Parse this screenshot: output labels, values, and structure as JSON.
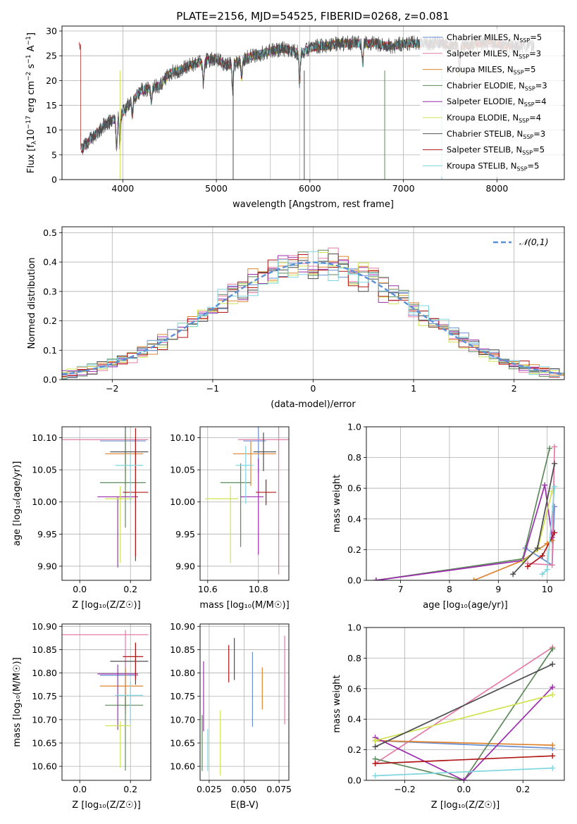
{
  "figure_title": "PLATE=2156, MJD=54525, FIBERID=0268, z=0.081",
  "legend_entries": [
    {
      "imf": "Chabrier",
      "lib": "MILES",
      "nssp": "5",
      "color": "#6a8fd3"
    },
    {
      "imf": "Salpeter",
      "lib": "MILES",
      "nssp": "3",
      "color": "#e57aa6"
    },
    {
      "imf": "Kroupa",
      "lib": "MILES",
      "nssp": "5",
      "color": "#e0832f"
    },
    {
      "imf": "Chabrier",
      "lib": "ELODIE",
      "nssp": "3",
      "color": "#5d8a5a"
    },
    {
      "imf": "Salpeter",
      "lib": "ELODIE",
      "nssp": "4",
      "color": "#9c2fad"
    },
    {
      "imf": "Kroupa",
      "lib": "ELODIE",
      "nssp": "4",
      "color": "#cfe34f"
    },
    {
      "imf": "Chabrier",
      "lib": "STELIB",
      "nssp": "3",
      "color": "#4d4d4d"
    },
    {
      "imf": "Salpeter",
      "lib": "STELIB",
      "nssp": "5",
      "color": "#b01818"
    },
    {
      "imf": "Kroupa",
      "lib": "STELIB",
      "nssp": "5",
      "color": "#7fd6df"
    }
  ],
  "chart_data": [
    {
      "id": "spectrum",
      "type": "line",
      "title": "PLATE=2156, MJD=54525, FIBERID=0268, z=0.081",
      "xlabel": "wavelength [Angstrom, rest frame]",
      "ylabel_parts": [
        "Flux [f",
        "λ",
        "10",
        "−17",
        " erg cm",
        "−2",
        " s",
        "−1",
        " A",
        "−1",
        "]"
      ],
      "xlim": [
        3350,
        8720
      ],
      "ylim": [
        0,
        31
      ],
      "xticks": [
        4000,
        5000,
        6000,
        7000,
        8000
      ],
      "yticks": [
        0,
        5,
        10,
        15,
        20,
        25,
        30
      ],
      "spectrum_shape": {
        "x": [
          3550,
          3700,
          3800,
          3900,
          4000,
          4100,
          4200,
          4300,
          4400,
          4500,
          4600,
          4700,
          4800,
          4900,
          5000,
          5100,
          5200,
          5300,
          5400,
          5500,
          5600,
          5700,
          5800,
          5900,
          6000,
          6100,
          6200,
          6300,
          6400,
          6500,
          6600,
          6700,
          6800,
          6900,
          7000,
          7100,
          7200,
          7300,
          7400,
          7500,
          7600,
          7700,
          7800,
          7900,
          8000,
          8100,
          8200,
          8300,
          8400
        ],
        "y": [
          6,
          9,
          11,
          12,
          13.5,
          16,
          18,
          18.5,
          19,
          21.5,
          22,
          23,
          23.5,
          24,
          24.5,
          23,
          23.5,
          24.5,
          25,
          25.5,
          26,
          26.5,
          26,
          25.5,
          26.5,
          27,
          27,
          27.5,
          27.5,
          27.5,
          27.5,
          27.5,
          27,
          27,
          27.5,
          27.5,
          27.5,
          27.5,
          27.5,
          27,
          27,
          27,
          27.5,
          27.5,
          27.5,
          27,
          27,
          27,
          27
        ]
      },
      "sky_lines": [
        5577,
        5890,
        6300
      ],
      "legend_placement": "upper-right"
    },
    {
      "id": "residuals",
      "type": "step",
      "xlabel": "(data-model)/error",
      "ylabel": "Normed distribution",
      "xlim": [
        -2.5,
        2.5
      ],
      "ylim": [
        0,
        0.52
      ],
      "xticks": [
        -2,
        -1,
        0,
        1,
        2
      ],
      "yticks": [
        0,
        0.1,
        0.2,
        0.3,
        0.4,
        0.5
      ],
      "bin_width": 0.1,
      "reference": {
        "label": "𝒩(0,1)",
        "color": "#5b8fd6",
        "style": "dashed"
      },
      "legend_placement": "upper-right"
    },
    {
      "id": "age_vs_Z",
      "type": "errorbar",
      "xlabel": "Z [log₁₀(Z/Z☉)]",
      "ylabel": "age  [log₁₀(age/yr)]",
      "xlim": [
        -0.07,
        0.28
      ],
      "ylim": [
        9.878,
        10.117
      ],
      "xticks": [
        0.0,
        0.2
      ],
      "yticks": [
        9.9,
        9.95,
        10.0,
        10.05,
        10.1
      ],
      "points": [
        {
          "x": 0.18,
          "y": 10.095,
          "xerr": [
            0.1,
            0.08
          ],
          "yerr": [
            0.05,
            0.03
          ],
          "color": "#6a8fd3"
        },
        {
          "x": 0.18,
          "y": 10.097,
          "xerr": [
            0.26,
            0.09
          ],
          "yerr": [
            0.0,
            0.02
          ],
          "color": "#e57aa6"
        },
        {
          "x": 0.18,
          "y": 10.075,
          "xerr": [
            0.08,
            0.07
          ],
          "yerr": [
            0.05,
            0.03
          ],
          "color": "#e0832f"
        },
        {
          "x": 0.18,
          "y": 10.03,
          "xerr": [
            0.1,
            0.08
          ],
          "yerr": [
            0.07,
            0.09
          ],
          "color": "#5d8a5a"
        },
        {
          "x": 0.15,
          "y": 10.008,
          "xerr": [
            0.08,
            0.08
          ],
          "yerr": [
            0.11,
            0.0
          ],
          "color": "#9c2fad"
        },
        {
          "x": 0.16,
          "y": 10.005,
          "xerr": [
            0.06,
            0.05
          ],
          "yerr": [
            0.1,
            0.02
          ],
          "color": "#cfe34f"
        },
        {
          "x": 0.22,
          "y": 10.078,
          "xerr": [
            0.1,
            0.05
          ],
          "yerr": [
            0.17,
            0.02
          ],
          "color": "#4d4d4d"
        },
        {
          "x": 0.22,
          "y": 10.015,
          "xerr": [
            0.05,
            0.05
          ],
          "yerr": [
            0.1,
            0.1
          ],
          "color": "#b01818"
        },
        {
          "x": 0.2,
          "y": 10.057,
          "xerr": [
            0.06,
            0.05
          ],
          "yerr": [
            0.06,
            0.02
          ],
          "color": "#7fd6df"
        }
      ]
    },
    {
      "id": "age_vs_mass",
      "type": "errorbar",
      "xlabel": "mass [log₁₀(M/M☉)]",
      "ylabel": "",
      "xlim": [
        10.57,
        10.92
      ],
      "ylim": [
        9.878,
        10.117
      ],
      "xticks": [
        10.6,
        10.8
      ],
      "yticks": [
        9.9,
        9.95,
        10.0,
        10.05,
        10.1
      ],
      "points": [
        {
          "x": 10.8,
          "y": 10.095,
          "xerr": [
            0.06,
            0.03
          ],
          "yerr": [
            0.05,
            0.03
          ],
          "color": "#6a8fd3"
        },
        {
          "x": 10.88,
          "y": 10.097,
          "xerr": [
            0.16,
            0.08
          ],
          "yerr": [
            0.21,
            0.02
          ],
          "color": "#e57aa6"
        },
        {
          "x": 10.77,
          "y": 10.075,
          "xerr": [
            0.07,
            0.1
          ],
          "yerr": [
            0.05,
            0.02
          ],
          "color": "#e0832f"
        },
        {
          "x": 10.73,
          "y": 10.03,
          "xerr": [
            0.08,
            0.04
          ],
          "yerr": [
            0.1,
            0.03
          ],
          "color": "#5d8a5a"
        },
        {
          "x": 10.8,
          "y": 10.008,
          "xerr": [
            0.07,
            0.02
          ],
          "yerr": [
            0.09,
            0.06
          ],
          "color": "#9c2fad"
        },
        {
          "x": 10.69,
          "y": 10.005,
          "xerr": [
            0.1,
            0.03
          ],
          "yerr": [
            0.1,
            0.02
          ],
          "color": "#cfe34f"
        },
        {
          "x": 10.82,
          "y": 10.078,
          "xerr": [
            0.04,
            0.05
          ],
          "yerr": [
            0.03,
            0.03
          ],
          "color": "#4d4d4d"
        },
        {
          "x": 10.83,
          "y": 10.015,
          "xerr": [
            0.04,
            0.04
          ],
          "yerr": [
            0.02,
            0.02
          ],
          "color": "#b01818"
        },
        {
          "x": 10.75,
          "y": 10.057,
          "xerr": [
            0.04,
            0.03
          ],
          "yerr": [
            0.06,
            0.03
          ],
          "color": "#7fd6df"
        }
      ]
    },
    {
      "id": "weight_vs_age",
      "type": "line",
      "xlabel": "age  [log₁₀(age/yr)]",
      "ylabel": "mass weight",
      "xlim": [
        6.3,
        10.35
      ],
      "ylim": [
        0,
        1
      ],
      "xticks": [
        7,
        8,
        9,
        10
      ],
      "yticks": [
        0,
        0.2,
        0.4,
        0.6,
        0.8,
        1.0
      ],
      "series": [
        {
          "color": "#6a8fd3",
          "x": [
            9.55,
            10.1,
            10.15
          ],
          "y": [
            0.21,
            0.1,
            0.48
          ]
        },
        {
          "color": "#e57aa6",
          "x": [
            9.6,
            10.1,
            10.15
          ],
          "y": [
            0.11,
            0.1,
            0.87
          ]
        },
        {
          "color": "#e0832f",
          "x": [
            8.5,
            9.5,
            10.0,
            10.1
          ],
          "y": [
            0.0,
            0.13,
            0.24,
            0.26
          ]
        },
        {
          "color": "#5d8a5a",
          "x": [
            6.5,
            9.5,
            10.05
          ],
          "y": [
            0.0,
            0.14,
            0.86
          ]
        },
        {
          "color": "#9c2fad",
          "x": [
            6.5,
            9.5,
            9.95,
            10.1
          ],
          "y": [
            0.0,
            0.13,
            0.62,
            0.28
          ]
        },
        {
          "color": "#cfe34f",
          "x": [
            9.5,
            9.8,
            10.1
          ],
          "y": [
            0.12,
            0.2,
            0.58
          ]
        },
        {
          "color": "#4d4d4d",
          "x": [
            9.3,
            9.8,
            10.15
          ],
          "y": [
            0.04,
            0.21,
            0.76
          ]
        },
        {
          "color": "#b01818",
          "x": [
            9.6,
            9.9,
            10.15
          ],
          "y": [
            0.09,
            0.16,
            0.31
          ]
        },
        {
          "color": "#7fd6df",
          "x": [
            9.9,
            10.0,
            10.15
          ],
          "y": [
            0.04,
            0.07,
            0.61
          ]
        }
      ]
    },
    {
      "id": "mass_vs_Z",
      "type": "errorbar",
      "xlabel": "Z [log₁₀(Z/Z☉)]",
      "ylabel": "mass [log₁₀(M/M☉)]",
      "xlim": [
        -0.07,
        0.28
      ],
      "ylim": [
        10.57,
        10.905
      ],
      "xticks": [
        0.0,
        0.2
      ],
      "yticks": [
        10.6,
        10.65,
        10.7,
        10.75,
        10.8,
        10.85,
        10.9
      ],
      "points": [
        {
          "x": 0.18,
          "y": 10.795,
          "xerr": [
            0.1,
            0.05
          ],
          "yerr": [
            0.07,
            0.04
          ],
          "color": "#6a8fd3"
        },
        {
          "x": 0.18,
          "y": 10.882,
          "xerr": [
            0.26,
            0.09
          ],
          "yerr": [
            0.17,
            0.01
          ],
          "color": "#e57aa6"
        },
        {
          "x": 0.18,
          "y": 10.772,
          "xerr": [
            0.1,
            0.07
          ],
          "yerr": [
            0.05,
            0.04
          ],
          "color": "#e0832f"
        },
        {
          "x": 0.18,
          "y": 10.731,
          "xerr": [
            0.08,
            0.07
          ],
          "yerr": [
            0.14,
            0.02
          ],
          "color": "#5d8a5a"
        },
        {
          "x": 0.15,
          "y": 10.798,
          "xerr": [
            0.08,
            0.08
          ],
          "yerr": [
            0.12,
            0.02
          ],
          "color": "#9c2fad"
        },
        {
          "x": 0.16,
          "y": 10.687,
          "xerr": [
            0.06,
            0.04
          ],
          "yerr": [
            0.09,
            0.01
          ],
          "color": "#cfe34f"
        },
        {
          "x": 0.22,
          "y": 10.825,
          "xerr": [
            0.1,
            0.05
          ],
          "yerr": [
            0.05,
            0.04
          ],
          "color": "#4d4d4d"
        },
        {
          "x": 0.22,
          "y": 10.835,
          "xerr": [
            0.05,
            0.03
          ],
          "yerr": [
            0.05,
            0.03
          ],
          "color": "#b01818"
        },
        {
          "x": 0.2,
          "y": 10.752,
          "xerr": [
            0.06,
            0.05
          ],
          "yerr": [
            0.06,
            0.03
          ],
          "color": "#7fd6df"
        }
      ]
    },
    {
      "id": "mass_vs_EBV",
      "type": "errorbar",
      "xlabel": "E(B-V)",
      "ylabel": "",
      "xlim": [
        0.0185,
        0.082
      ],
      "ylim": [
        10.57,
        10.905
      ],
      "xticks": [
        0.025,
        0.05,
        0.075
      ],
      "yticks": [
        10.6,
        10.65,
        10.7,
        10.75,
        10.8,
        10.85,
        10.9
      ],
      "points": [
        {
          "x": 0.056,
          "y": 10.795,
          "xerr": [
            0,
            0
          ],
          "yerr": [
            0.11,
            0.05
          ],
          "color": "#6a8fd3"
        },
        {
          "x": 0.079,
          "y": 10.8,
          "xerr": [
            0,
            0
          ],
          "yerr": [
            0.11,
            0.08
          ],
          "color": "#e57aa6"
        },
        {
          "x": 0.063,
          "y": 10.772,
          "xerr": [
            0,
            0
          ],
          "yerr": [
            0.05,
            0.04
          ],
          "color": "#e0832f"
        },
        {
          "x": 0.02,
          "y": 10.65,
          "xerr": [
            0,
            0
          ],
          "yerr": [
            0.06,
            0.06
          ],
          "color": "#5d8a5a"
        },
        {
          "x": 0.021,
          "y": 10.755,
          "xerr": [
            0,
            0
          ],
          "yerr": [
            0.08,
            0.07
          ],
          "color": "#9c2fad"
        },
        {
          "x": 0.033,
          "y": 10.65,
          "xerr": [
            0,
            0
          ],
          "yerr": [
            0.07,
            0.07
          ],
          "color": "#cfe34f"
        },
        {
          "x": 0.043,
          "y": 10.825,
          "xerr": [
            0,
            0
          ],
          "yerr": [
            0.04,
            0.05
          ],
          "color": "#4d4d4d"
        },
        {
          "x": 0.039,
          "y": 10.82,
          "xerr": [
            0,
            0
          ],
          "yerr": [
            0.04,
            0.04
          ],
          "color": "#b01818"
        },
        {
          "x": 0.024,
          "y": 10.64,
          "xerr": [
            0,
            0
          ],
          "yerr": [
            0.05,
            0.04
          ],
          "color": "#7fd6df"
        }
      ]
    },
    {
      "id": "weight_vs_Z",
      "type": "line",
      "xlabel": "Z [log₁₀(Z/Z☉)]",
      "ylabel": "mass weight",
      "xlim": [
        -0.33,
        0.34
      ],
      "ylim": [
        0,
        1
      ],
      "xticks": [
        -0.2,
        0.0,
        0.2
      ],
      "yticks": [
        0,
        0.2,
        0.4,
        0.6,
        0.8,
        1.0
      ],
      "series": [
        {
          "color": "#6a8fd3",
          "x": [
            -0.3,
            0.3
          ],
          "y": [
            0.26,
            0.21
          ]
        },
        {
          "color": "#e57aa6",
          "x": [
            -0.3,
            0.3
          ],
          "y": [
            0.11,
            0.87
          ]
        },
        {
          "color": "#e0832f",
          "x": [
            -0.3,
            0.3
          ],
          "y": [
            0.26,
            0.23
          ]
        },
        {
          "color": "#5d8a5a",
          "x": [
            -0.3,
            0.0,
            0.3
          ],
          "y": [
            0.14,
            0.0,
            0.86
          ]
        },
        {
          "color": "#9c2fad",
          "x": [
            -0.3,
            0.0,
            0.3
          ],
          "y": [
            0.28,
            0.0,
            0.61
          ]
        },
        {
          "color": "#cfe34f",
          "x": [
            -0.3,
            0.3
          ],
          "y": [
            0.26,
            0.56
          ]
        },
        {
          "color": "#4d4d4d",
          "x": [
            -0.3,
            0.3
          ],
          "y": [
            0.22,
            0.76
          ]
        },
        {
          "color": "#b01818",
          "x": [
            -0.3,
            0.3
          ],
          "y": [
            0.11,
            0.16
          ]
        },
        {
          "color": "#7fd6df",
          "x": [
            -0.3,
            0.3
          ],
          "y": [
            0.03,
            0.08
          ]
        }
      ]
    }
  ]
}
